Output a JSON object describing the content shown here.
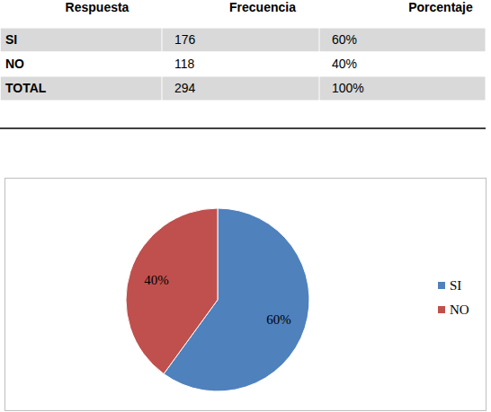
{
  "table": {
    "header": [
      "Respuesta",
      "Frecuencia",
      "Porcentaje"
    ],
    "rows": [
      [
        "SI",
        176,
        "60%"
      ],
      [
        "NO",
        118,
        "40%"
      ],
      [
        "TOTAL",
        294,
        "100%"
      ]
    ]
  },
  "chart_data": {
    "type": "pie",
    "categories": [
      "SI",
      "NO"
    ],
    "values": [
      60,
      40
    ],
    "value_labels": [
      "60%",
      "40%"
    ],
    "colors": [
      "#4f81bd",
      "#c0504d"
    ],
    "data_labels": true,
    "legend": "right"
  }
}
